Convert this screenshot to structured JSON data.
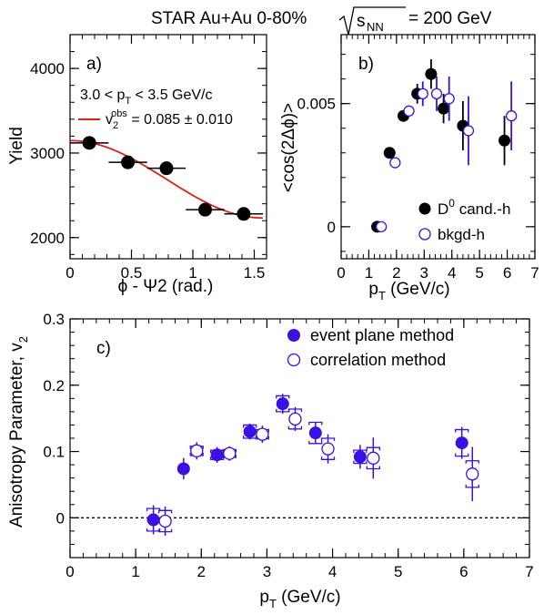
{
  "figure": {
    "title_left": "STAR  Au+Au 0-80%",
    "title_right": "= 200 GeV",
    "title_sqrt_base": "s",
    "title_sqrt_sub": "NN"
  },
  "colors": {
    "blue": "#3a10e5",
    "black": "#000000",
    "fit": "#e0201a"
  },
  "chart_data": [
    {
      "panel": "a)",
      "type": "scatter",
      "xlabel": "ϕ - Ψ2 (rad.)",
      "ylabel": "Yield",
      "xlim": [
        0,
        1.6
      ],
      "ylim": [
        1750,
        4400
      ],
      "xticks": [
        0,
        0.5,
        1,
        1.5
      ],
      "xtick_labels": [
        "0",
        "0.5",
        "1",
        "1.5"
      ],
      "yticks": [
        2000,
        3000,
        4000
      ],
      "ytick_labels": [
        "2000",
        "3000",
        "4000"
      ],
      "points": [
        {
          "x": 0.157,
          "y": 3120,
          "xerr": 0.157
        },
        {
          "x": 0.471,
          "y": 2890,
          "xerr": 0.157
        },
        {
          "x": 0.785,
          "y": 2820,
          "xerr": 0.157
        },
        {
          "x": 1.1,
          "y": 2330,
          "xerr": 0.157
        },
        {
          "x": 1.414,
          "y": 2280,
          "xerr": 0.157
        }
      ],
      "fit": {
        "A": 2690,
        "v2": 0.085
      },
      "annotation_pt": "3.0 < p",
      "annotation_pt_sub": "T",
      "annotation_pt_end": " < 3.5 GeV/c",
      "fit_label_v": "v",
      "fit_label_sub": "2",
      "fit_label_sup": "obs",
      "fit_label_value": " = 0.085 ± 0.010"
    },
    {
      "panel": "b)",
      "type": "scatter",
      "xlabel": "p",
      "xlabel_sub": "T",
      "xlabel_end": " (GeV/c)",
      "ylabel": "<cos(2Δϕ)>",
      "xlim": [
        0,
        7
      ],
      "ylim": [
        -0.0013,
        0.0078
      ],
      "xticks": [
        0,
        1,
        2,
        3,
        4,
        5,
        6,
        7
      ],
      "xtick_labels": [
        "0",
        "1",
        "2",
        "3",
        "4",
        "5",
        "6",
        "7"
      ],
      "yticks": [
        0,
        0.005
      ],
      "ytick_labels": [
        "0",
        "0.005"
      ],
      "series": [
        {
          "name": "D0 cand.-h",
          "style": "filled",
          "points": [
            {
              "x": 1.3,
              "y": 0.0,
              "ye": 0
            },
            {
              "x": 1.75,
              "y": 0.003,
              "ye": 0
            },
            {
              "x": 2.25,
              "y": 0.0045,
              "ye": 0
            },
            {
              "x": 2.75,
              "y": 0.0054,
              "ye": 0.0004
            },
            {
              "x": 3.25,
              "y": 0.0062,
              "ye": 0.0006
            },
            {
              "x": 3.7,
              "y": 0.0048,
              "ye": 0.0006
            },
            {
              "x": 4.4,
              "y": 0.0041,
              "ye": 0.001
            },
            {
              "x": 5.9,
              "y": 0.0035,
              "ye": 0.001
            }
          ]
        },
        {
          "name": "bkgd-h",
          "style": "open",
          "points": [
            {
              "x": 1.45,
              "y": 0.0,
              "ye": 0
            },
            {
              "x": 1.95,
              "y": 0.0026,
              "ye": 0
            },
            {
              "x": 2.45,
              "y": 0.0047,
              "ye": 0
            },
            {
              "x": 2.95,
              "y": 0.0054,
              "ye": 0.0005
            },
            {
              "x": 3.45,
              "y": 0.0054,
              "ye": 0.0007
            },
            {
              "x": 3.9,
              "y": 0.0052,
              "ye": 0.0009
            },
            {
              "x": 4.6,
              "y": 0.0039,
              "ye": 0.0014
            },
            {
              "x": 6.15,
              "y": 0.0045,
              "ye": 0.0014
            }
          ]
        }
      ],
      "legend": {
        "filled_base": "D",
        "filled_sup": "0",
        "filled_end": " cand.-h",
        "open": "bkgd-h",
        "placement": "bottom-right"
      }
    },
    {
      "panel": "c)",
      "type": "scatter",
      "xlabel": "p",
      "xlabel_sub": "T",
      "xlabel_end": " (GeV/c)",
      "ylabel": "Anisotropy Parameter, v",
      "ylabel_sub": "2",
      "xlim": [
        0,
        7
      ],
      "ylim": [
        -0.06,
        0.3
      ],
      "xticks": [
        0,
        1,
        2,
        3,
        4,
        5,
        6,
        7
      ],
      "xtick_labels": [
        "0",
        "1",
        "2",
        "3",
        "4",
        "5",
        "6",
        "7"
      ],
      "yticks": [
        0,
        0.1,
        0.2,
        0.3
      ],
      "ytick_labels": [
        "0",
        "0.1",
        "0.2",
        "0.3"
      ],
      "reference_line": 0,
      "series": [
        {
          "name": "event plane method",
          "style": "filled",
          "points": [
            {
              "x": 1.27,
              "y": -0.003,
              "ye": 0.022,
              "xe": 0.1,
              "sys": 0.017
            },
            {
              "x": 1.73,
              "y": 0.074,
              "ye": 0.016,
              "xe": 0,
              "sys": 0
            },
            {
              "x": 2.24,
              "y": 0.095,
              "ye": 0.012,
              "xe": 0.09,
              "sys": 0.007
            },
            {
              "x": 2.74,
              "y": 0.13,
              "ye": 0.012,
              "xe": 0.09,
              "sys": 0.01
            },
            {
              "x": 3.24,
              "y": 0.172,
              "ye": 0.015,
              "xe": 0.09,
              "sys": 0.012
            },
            {
              "x": 3.74,
              "y": 0.128,
              "ye": 0.016,
              "xe": 0.09,
              "sys": 0.016
            },
            {
              "x": 4.42,
              "y": 0.092,
              "ye": 0.018,
              "xe": 0.09,
              "sys": 0.01
            },
            {
              "x": 5.97,
              "y": 0.113,
              "ye": 0.024,
              "xe": 0.09,
              "sys": 0.02
            }
          ]
        },
        {
          "name": "correlation method",
          "style": "open",
          "points": [
            {
              "x": 1.45,
              "y": -0.005,
              "ye": 0.022,
              "xe": 0.09,
              "sys": 0.016
            },
            {
              "x": 1.93,
              "y": 0.101,
              "ye": 0.013,
              "xe": 0.08,
              "sys": 0.007
            },
            {
              "x": 2.43,
              "y": 0.097,
              "ye": 0.011,
              "xe": 0.08,
              "sys": 0.006
            },
            {
              "x": 2.93,
              "y": 0.126,
              "ye": 0.013,
              "xe": 0.08,
              "sys": 0.007
            },
            {
              "x": 3.43,
              "y": 0.149,
              "ye": 0.018,
              "xe": 0.08,
              "sys": 0.015
            },
            {
              "x": 3.93,
              "y": 0.104,
              "ye": 0.022,
              "xe": 0.08,
              "sys": 0.016
            },
            {
              "x": 4.62,
              "y": 0.09,
              "ye": 0.031,
              "xe": 0.08,
              "sys": 0.016
            },
            {
              "x": 6.13,
              "y": 0.066,
              "ye": 0.041,
              "xe": 0.08,
              "sys": 0.02
            }
          ]
        }
      ],
      "legend": {
        "placement": "top-right"
      }
    }
  ]
}
